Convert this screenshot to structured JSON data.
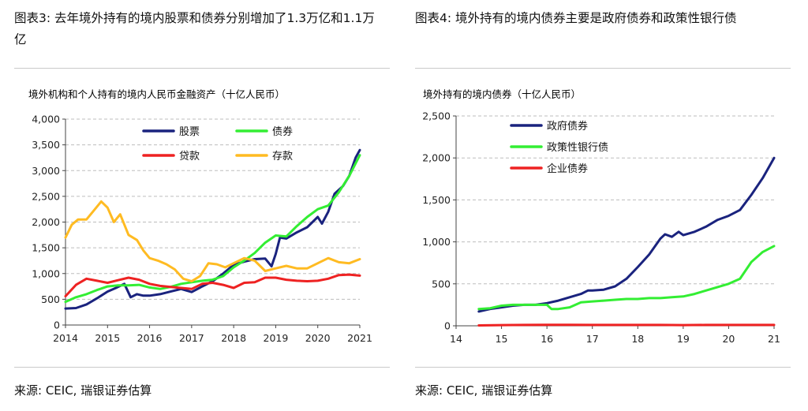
{
  "left": {
    "caption": "图表3: 去年境外持有的境内股票和债券分别增加了1.3万亿和1.1万亿",
    "source": "来源: CEIC, 瑞银证券估算",
    "chart_data": {
      "type": "line",
      "title": "境外机构和个人持有的境内人民币金融资产（十亿人民币）",
      "xlim": [
        2014,
        2021
      ],
      "ylim": [
        0,
        4000
      ],
      "x_ticks": [
        2014,
        2015,
        2016,
        2017,
        2018,
        2019,
        2020,
        2021
      ],
      "y_ticks": [
        0,
        500,
        1000,
        1500,
        2000,
        2500,
        3000,
        3500,
        4000
      ],
      "y_tick_labels": [
        "0",
        "500",
        "1,000",
        "1,500",
        "2,000",
        "2,500",
        "3,000",
        "3,500",
        "4,000"
      ],
      "grid": "horizontal dashed",
      "legend_position": "top-left, two columns",
      "series": [
        {
          "name": "股票",
          "color": "#1a237e",
          "x": [
            2014.0,
            2014.25,
            2014.5,
            2014.75,
            2015.0,
            2015.2,
            2015.4,
            2015.55,
            2015.7,
            2015.85,
            2016.0,
            2016.25,
            2016.5,
            2016.75,
            2017.0,
            2017.25,
            2017.5,
            2017.75,
            2018.0,
            2018.25,
            2018.5,
            2018.75,
            2018.9,
            2019.0,
            2019.1,
            2019.25,
            2019.5,
            2019.75,
            2020.0,
            2020.1,
            2020.25,
            2020.4,
            2020.6,
            2020.75,
            2020.9,
            2021.0
          ],
          "y": [
            320,
            330,
            400,
            520,
            650,
            720,
            800,
            540,
            600,
            570,
            570,
            600,
            650,
            700,
            640,
            750,
            850,
            1000,
            1170,
            1230,
            1280,
            1290,
            1140,
            1380,
            1700,
            1680,
            1800,
            1900,
            2100,
            1970,
            2200,
            2550,
            2700,
            2900,
            3250,
            3400
          ]
        },
        {
          "name": "债券",
          "color": "#33ee33",
          "x": [
            2014.0,
            2014.25,
            2014.5,
            2014.75,
            2015.0,
            2015.25,
            2015.5,
            2015.75,
            2016.0,
            2016.25,
            2016.5,
            2016.75,
            2017.0,
            2017.25,
            2017.5,
            2017.75,
            2018.0,
            2018.25,
            2018.5,
            2018.75,
            2019.0,
            2019.25,
            2019.5,
            2019.75,
            2020.0,
            2020.25,
            2020.5,
            2020.75,
            2021.0
          ],
          "y": [
            450,
            540,
            600,
            680,
            750,
            770,
            770,
            780,
            730,
            700,
            740,
            800,
            830,
            860,
            880,
            950,
            1120,
            1250,
            1400,
            1600,
            1740,
            1720,
            1920,
            2100,
            2250,
            2320,
            2580,
            2900,
            3300
          ]
        },
        {
          "name": "贷款",
          "color": "#ee2222",
          "x": [
            2014.0,
            2014.25,
            2014.5,
            2014.75,
            2015.0,
            2015.25,
            2015.5,
            2015.75,
            2016.0,
            2016.25,
            2016.5,
            2016.75,
            2017.0,
            2017.25,
            2017.5,
            2017.75,
            2018.0,
            2018.25,
            2018.5,
            2018.75,
            2019.0,
            2019.25,
            2019.5,
            2019.75,
            2020.0,
            2020.25,
            2020.5,
            2020.75,
            2021.0
          ],
          "y": [
            560,
            780,
            900,
            860,
            820,
            870,
            920,
            880,
            800,
            760,
            740,
            720,
            700,
            800,
            820,
            780,
            720,
            820,
            830,
            920,
            920,
            880,
            860,
            850,
            860,
            900,
            970,
            980,
            960
          ]
        },
        {
          "name": "存款",
          "color": "#ffbb22",
          "x": [
            2014.0,
            2014.15,
            2014.3,
            2014.5,
            2014.7,
            2014.85,
            2015.0,
            2015.15,
            2015.3,
            2015.5,
            2015.7,
            2015.85,
            2016.0,
            2016.2,
            2016.4,
            2016.6,
            2016.8,
            2017.0,
            2017.2,
            2017.4,
            2017.6,
            2017.8,
            2018.0,
            2018.25,
            2018.5,
            2018.75,
            2019.0,
            2019.25,
            2019.5,
            2019.75,
            2020.0,
            2020.25,
            2020.5,
            2020.75,
            2021.0
          ],
          "y": [
            1700,
            1950,
            2050,
            2050,
            2250,
            2400,
            2280,
            2000,
            2150,
            1750,
            1650,
            1450,
            1300,
            1250,
            1180,
            1080,
            900,
            850,
            950,
            1200,
            1180,
            1120,
            1200,
            1300,
            1250,
            1050,
            1100,
            1150,
            1100,
            1100,
            1200,
            1300,
            1220,
            1200,
            1280
          ]
        }
      ]
    }
  },
  "right": {
    "caption": "图表4: 境外持有的境内债券主要是政府债券和政策性银行债",
    "source": "来源: CEIC, 瑞银证券估算",
    "chart_data": {
      "type": "line",
      "title": "境外持有的境内债券（十亿人民币）",
      "xlim": [
        14,
        21
      ],
      "ylim": [
        0,
        2500
      ],
      "x_ticks": [
        14,
        15,
        16,
        17,
        18,
        19,
        20,
        21
      ],
      "y_ticks": [
        0,
        500,
        1000,
        1500,
        2000,
        2500
      ],
      "y_tick_labels": [
        "0",
        "500",
        "1,000",
        "1,500",
        "2,000",
        "2,500"
      ],
      "grid": "horizontal dashed",
      "legend_position": "top-left, one column",
      "series": [
        {
          "name": "政府债券",
          "color": "#1a237e",
          "x": [
            14.5,
            14.75,
            15.0,
            15.25,
            15.5,
            15.75,
            16.0,
            16.25,
            16.5,
            16.75,
            16.9,
            17.0,
            17.25,
            17.5,
            17.75,
            18.0,
            18.25,
            18.5,
            18.6,
            18.75,
            18.9,
            19.0,
            19.25,
            19.5,
            19.75,
            20.0,
            20.25,
            20.5,
            20.75,
            21.0
          ],
          "y": [
            170,
            200,
            220,
            240,
            250,
            250,
            270,
            300,
            340,
            380,
            420,
            420,
            430,
            470,
            560,
            700,
            850,
            1040,
            1090,
            1060,
            1120,
            1080,
            1120,
            1180,
            1260,
            1310,
            1380,
            1560,
            1760,
            2000
          ]
        },
        {
          "name": "政策性银行债",
          "color": "#33ee33",
          "x": [
            14.5,
            14.75,
            15.0,
            15.25,
            15.5,
            15.75,
            16.0,
            16.1,
            16.25,
            16.5,
            16.75,
            17.0,
            17.25,
            17.5,
            17.75,
            18.0,
            18.25,
            18.5,
            18.75,
            19.0,
            19.25,
            19.5,
            19.75,
            20.0,
            20.25,
            20.5,
            20.75,
            21.0
          ],
          "y": [
            200,
            210,
            240,
            250,
            250,
            250,
            250,
            200,
            200,
            220,
            280,
            290,
            300,
            310,
            320,
            320,
            330,
            330,
            340,
            350,
            380,
            420,
            460,
            500,
            560,
            760,
            880,
            950
          ]
        },
        {
          "name": "企业债券",
          "color": "#ee2222",
          "x": [
            14.5,
            15.0,
            15.5,
            16.0,
            16.5,
            17.0,
            17.5,
            18.0,
            18.5,
            19.0,
            19.5,
            20.0,
            20.5,
            21.0
          ],
          "y": [
            5,
            8,
            10,
            12,
            12,
            10,
            10,
            10,
            10,
            8,
            10,
            10,
            10,
            10
          ]
        }
      ]
    }
  }
}
